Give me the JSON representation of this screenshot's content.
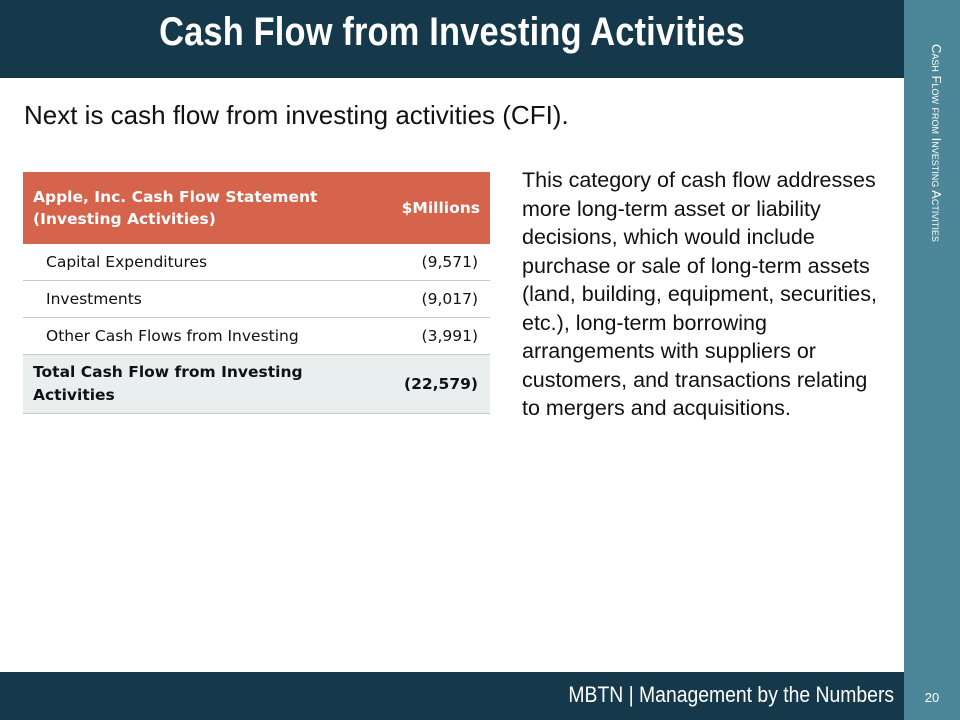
{
  "header": {
    "title": "Cash Flow from Investing Activities"
  },
  "side": {
    "label": "Cash Flow from Investing Activities"
  },
  "subtitle": "Next is cash flow from investing activities (CFI).",
  "table": {
    "header_label": "Apple, Inc.  Cash Flow Statement (Investing Activities)",
    "header_unit": "$Millions",
    "rows": [
      {
        "label": "Capital Expenditures",
        "value": "(9,571)"
      },
      {
        "label": "Investments",
        "value": "(9,017)"
      },
      {
        "label": "Other Cash Flows from Investing",
        "value": "(3,991)"
      }
    ],
    "total": {
      "label": "Total Cash Flow from Investing Activities",
      "value": "(22,579)"
    }
  },
  "body": "This category of cash flow addresses more long-term asset or liability decisions, which would include purchase or sale of long-term assets (land, building, equipment, securities, etc.), long-term borrowing arrangements with suppliers or customers, and transactions relating to mergers and acquisitions.",
  "footer": {
    "label": "MBTN | Management by the Numbers",
    "page": "20"
  },
  "colors": {
    "header_bg": "#15394a",
    "side_panel": "#4b8799",
    "table_header": "#d6634b",
    "total_row": "#e9eeee"
  }
}
